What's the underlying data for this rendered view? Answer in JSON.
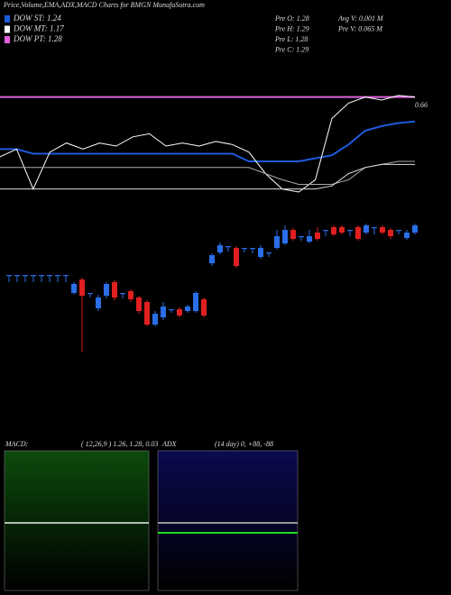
{
  "header": {
    "title": "Price,Volume,EMA,ADX,MACD Charts for RMGN  MunafaSutra.com"
  },
  "legend": [
    {
      "label": "DOW ST: 1.24",
      "color": "#1e5adc"
    },
    {
      "label": "DOW MT: 1.17",
      "color": "#ffffff"
    },
    {
      "label": "DOW PT: 1.28",
      "color": "#e060e0"
    }
  ],
  "info": [
    "Pre  O: 1.28",
    "Pre  H: 1.29",
    "Pre  L: 1.28",
    "Pre  C: 1.29",
    "Avg V: 0.001 M",
    "Pre  V: 0.065 M"
  ],
  "chart_data": [
    {
      "type": "line",
      "ylim": [
        0,
        1
      ],
      "annotation": "0.66",
      "series": [
        {
          "color": "#e060e0",
          "values": [
            0.72,
            0.72,
            0.72,
            0.72,
            0.72,
            0.72,
            0.72,
            0.72,
            0.72,
            0.72,
            0.72,
            0.72,
            0.72,
            0.72,
            0.72,
            0.72,
            0.72,
            0.72,
            0.72,
            0.72,
            0.72,
            0.72,
            0.72,
            0.72,
            0.72,
            0.72
          ]
        },
        {
          "color": "#1e5adc",
          "values": [
            0.38,
            0.38,
            0.35,
            0.35,
            0.35,
            0.35,
            0.35,
            0.35,
            0.35,
            0.35,
            0.35,
            0.35,
            0.35,
            0.35,
            0.35,
            0.3,
            0.3,
            0.3,
            0.3,
            0.32,
            0.34,
            0.41,
            0.5,
            0.53,
            0.55,
            0.56
          ]
        },
        {
          "color": "#ffffff",
          "values": [
            0.33,
            0.38,
            0.12,
            0.36,
            0.42,
            0.38,
            0.42,
            0.4,
            0.46,
            0.48,
            0.4,
            0.42,
            0.4,
            0.43,
            0.41,
            0.36,
            0.22,
            0.12,
            0.1,
            0.18,
            0.58,
            0.68,
            0.72,
            0.7,
            0.73,
            0.72
          ]
        },
        {
          "color": "#aaaaaa",
          "values": [
            0.26,
            0.26,
            0.26,
            0.26,
            0.26,
            0.26,
            0.26,
            0.26,
            0.26,
            0.26,
            0.26,
            0.26,
            0.26,
            0.26,
            0.26,
            0.26,
            0.22,
            0.18,
            0.15,
            0.15,
            0.15,
            0.18,
            0.26,
            0.28,
            0.3,
            0.3
          ]
        },
        {
          "color": "#dddddd",
          "values": [
            0.12,
            0.12,
            0.12,
            0.12,
            0.12,
            0.12,
            0.12,
            0.12,
            0.12,
            0.12,
            0.12,
            0.12,
            0.12,
            0.12,
            0.12,
            0.12,
            0.12,
            0.12,
            0.12,
            0.12,
            0.14,
            0.22,
            0.26,
            0.28,
            0.28,
            0.28
          ]
        }
      ]
    },
    {
      "type": "candlestick",
      "ylim": [
        1.14,
        1.3
      ],
      "up_color": "#2a6ee8",
      "down_color": "#e02020",
      "open": [
        1.24,
        1.24,
        1.24,
        1.24,
        1.24,
        1.24,
        1.24,
        1.24,
        1.22,
        1.235,
        1.22,
        1.203,
        1.217,
        1.232,
        1.22,
        1.222,
        1.215,
        1.21,
        1.185,
        1.193,
        1.202,
        1.202,
        1.2,
        1.2,
        1.213,
        1.253,
        1.265,
        1.272,
        1.27,
        1.27,
        1.27,
        1.26,
        1.265,
        1.27,
        1.275,
        1.29,
        1.283,
        1.277,
        1.287,
        1.29,
        1.293,
        1.293,
        1.29,
        1.293,
        1.287,
        1.293,
        1.293,
        1.29,
        1.29,
        1.281,
        1.287
      ],
      "high": [
        1.24,
        1.24,
        1.24,
        1.24,
        1.24,
        1.24,
        1.24,
        1.24,
        1.232,
        1.237,
        1.22,
        1.218,
        1.232,
        1.234,
        1.22,
        1.224,
        1.217,
        1.212,
        1.2,
        1.21,
        1.202,
        1.204,
        1.207,
        1.222,
        1.215,
        1.264,
        1.276,
        1.272,
        1.272,
        1.27,
        1.27,
        1.273,
        1.265,
        1.29,
        1.295,
        1.292,
        1.283,
        1.29,
        1.293,
        1.29,
        1.295,
        1.295,
        1.29,
        1.295,
        1.297,
        1.293,
        1.295,
        1.292,
        1.29,
        1.29,
        1.297
      ],
      "low": [
        1.232,
        1.232,
        1.232,
        1.232,
        1.232,
        1.232,
        1.232,
        1.232,
        1.218,
        1.155,
        1.215,
        1.2,
        1.214,
        1.212,
        1.214,
        1.21,
        1.197,
        1.183,
        1.183,
        1.19,
        1.198,
        1.193,
        1.198,
        1.198,
        1.193,
        1.25,
        1.263,
        1.266,
        1.248,
        1.265,
        1.264,
        1.258,
        1.26,
        1.268,
        1.273,
        1.278,
        1.278,
        1.275,
        1.278,
        1.283,
        1.283,
        1.285,
        1.283,
        1.278,
        1.285,
        1.285,
        1.285,
        1.28,
        1.285,
        1.279,
        1.285
      ],
      "close": [
        1.24,
        1.24,
        1.24,
        1.24,
        1.24,
        1.24,
        1.24,
        1.24,
        1.23,
        1.217,
        1.22,
        1.215,
        1.23,
        1.215,
        1.22,
        1.213,
        1.2,
        1.185,
        1.197,
        1.205,
        1.202,
        1.195,
        1.205,
        1.22,
        1.195,
        1.262,
        1.273,
        1.272,
        1.25,
        1.27,
        1.27,
        1.27,
        1.265,
        1.283,
        1.29,
        1.28,
        1.283,
        1.283,
        1.28,
        1.29,
        1.285,
        1.287,
        1.29,
        1.28,
        1.295,
        1.293,
        1.287,
        1.283,
        1.29,
        1.287,
        1.295
      ]
    }
  ],
  "macd": {
    "label": "MACD:",
    "params": "( 12,26,9 ) 1.26, 1.28, 0.03"
  },
  "adx": {
    "label": "ADX",
    "params": "(14  day) 0, +88, -88"
  }
}
